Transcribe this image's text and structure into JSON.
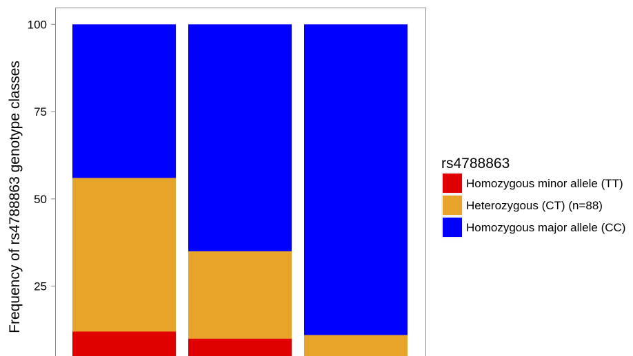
{
  "chart_data": {
    "type": "bar",
    "stacked": true,
    "orientation": "vertical",
    "categories": [
      "",
      "",
      ""
    ],
    "series": [
      {
        "name": "Homozygous minor allele (TT)",
        "color": "#e00000",
        "values": [
          12,
          10,
          5
        ]
      },
      {
        "name": "Heterozygous (CT) (n=88)",
        "color": "#e8a329",
        "values": [
          44,
          25,
          6
        ]
      },
      {
        "name": "Homozygous major allele (CC)",
        "color": "#0000ff",
        "values": [
          44,
          65,
          89
        ]
      }
    ],
    "title": "",
    "xlabel": "",
    "ylabel": "Frequency of rs4788863 genotype classes",
    "ylim": [
      5,
      104.8
    ],
    "yticks": [
      25,
      50,
      75,
      100
    ],
    "yticklabels": [
      "25",
      "50",
      "75",
      "100"
    ],
    "grid": false,
    "panel_border": true,
    "legend": {
      "title": "rs4788863",
      "position": "right"
    }
  }
}
